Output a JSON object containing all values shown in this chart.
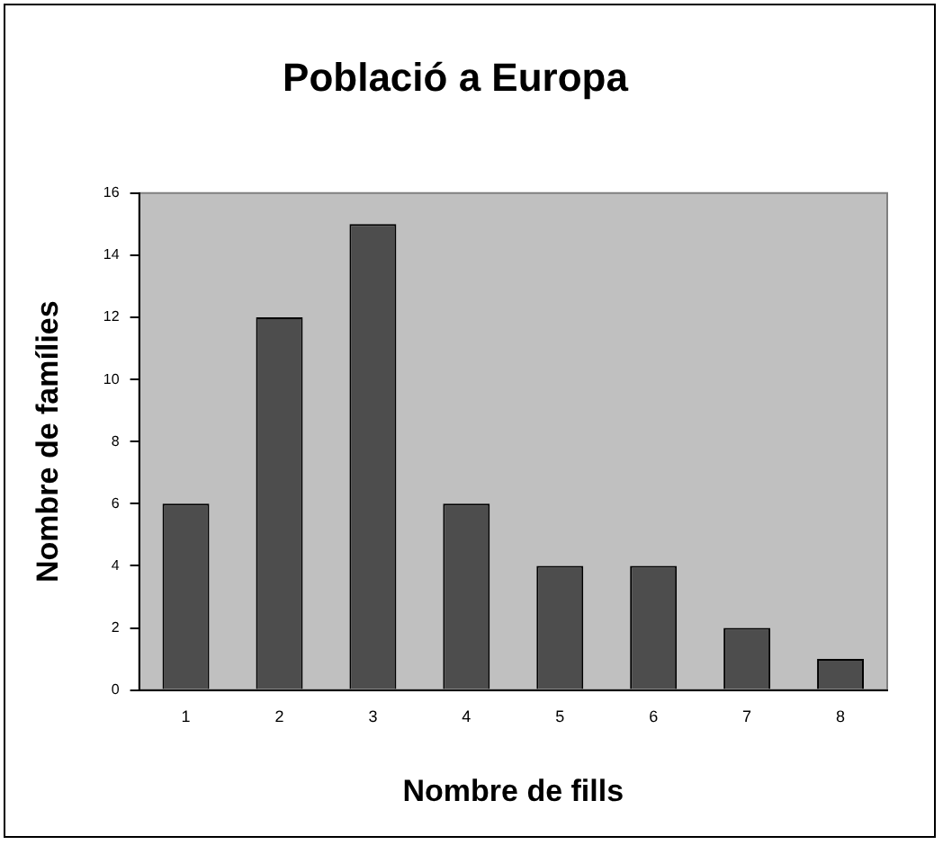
{
  "chart_data": {
    "type": "bar",
    "title": "Població a Europa",
    "xlabel": "Nombre de fills",
    "ylabel": "Nombre de famílies",
    "categories": [
      "1",
      "2",
      "3",
      "4",
      "5",
      "6",
      "7",
      "8"
    ],
    "values": [
      6,
      12,
      15,
      6,
      4,
      4,
      2,
      1
    ],
    "color": "#4d4d4d",
    "ylim": [
      0,
      16
    ],
    "yticks": [
      0,
      2,
      4,
      6,
      8,
      10,
      12,
      14,
      16
    ],
    "grid": false,
    "legend": false
  }
}
